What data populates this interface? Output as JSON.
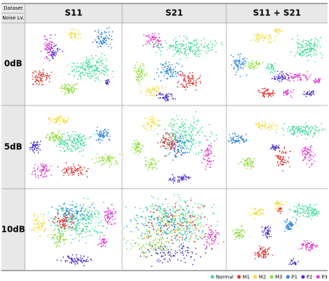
{
  "header": {
    "corner_top": "Dataset",
    "corner_bottom": "Noise Lv.",
    "columns": [
      "S11",
      "S21",
      "S11 + S21"
    ]
  },
  "rows": [
    "0dB",
    "5dB",
    "10dB"
  ],
  "legend": [
    {
      "label": "Normal",
      "color": "#3ddc97"
    },
    {
      "label": "M1",
      "color": "#e0302f"
    },
    {
      "label": "M2",
      "color": "#f2dc3c"
    },
    {
      "label": "M3",
      "color": "#8fdc3c"
    },
    {
      "label": "P1",
      "color": "#2e86de"
    },
    {
      "label": "P2",
      "color": "#4b2bd1"
    },
    {
      "label": "P3",
      "color": "#e23bd0"
    }
  ]
}
